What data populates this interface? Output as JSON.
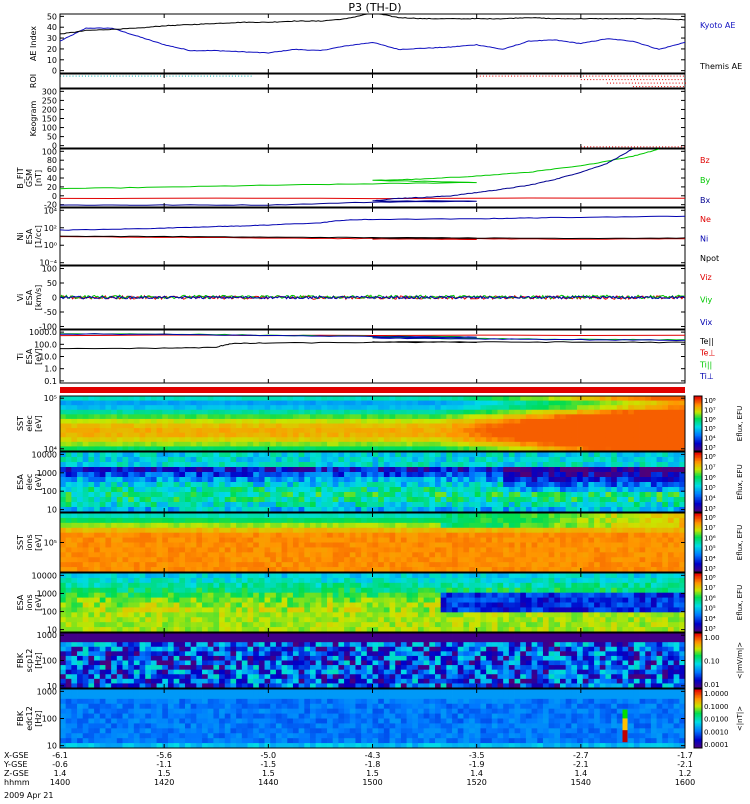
{
  "title": "P3 (TH-D)",
  "date_label": "2009 Apr 21",
  "colors": {
    "kyoto": "#1010c0",
    "themis": "#000000",
    "red": "#e00000",
    "green": "#00c800",
    "blue": "#0000b0",
    "black": "#000000"
  },
  "chart_data": [
    {
      "type": "line",
      "id": "ae",
      "ylabel": "AE Index",
      "ylim": [
        0,
        50
      ],
      "yticks": [
        "0",
        "10",
        "20",
        "30",
        "40",
        "50"
      ],
      "series": [
        {
          "name": "Kyoto AE",
          "color": "#1010c0",
          "x": [
            1400,
            1405,
            1410,
            1415,
            1420,
            1425,
            1430,
            1435,
            1440,
            1445,
            1450,
            1455,
            1500,
            1505,
            1510,
            1515,
            1520,
            1525,
            1530,
            1535,
            1540,
            1545,
            1550,
            1555,
            1600
          ],
          "y": [
            27,
            38,
            38,
            31,
            24,
            19,
            19,
            18,
            17,
            20,
            19,
            23,
            26,
            20,
            21,
            22,
            24,
            20,
            27,
            28,
            25,
            29,
            27,
            20,
            26
          ]
        },
        {
          "name": "Themis AE",
          "color": "#000000",
          "x": [
            1400,
            1405,
            1410,
            1415,
            1420,
            1425,
            1430,
            1435,
            1440,
            1445,
            1450,
            1455,
            1500,
            1505,
            1510,
            1515,
            1520,
            1525,
            1530,
            1535,
            1540,
            1545,
            1550,
            1555,
            1600
          ],
          "y": [
            33,
            36,
            37,
            38,
            40,
            41,
            42,
            43,
            43,
            44,
            44,
            46,
            51,
            47,
            46,
            46,
            46,
            46,
            47,
            46,
            46,
            46,
            46,
            46,
            45
          ]
        }
      ]
    },
    {
      "type": "scatter",
      "id": "roi",
      "ylabel": "ROI",
      "series": [
        {
          "color": "#00b0b0",
          "x_range": [
            1400,
            1437
          ],
          "level": 0.85
        },
        {
          "color": "#e00000",
          "x_range": [
            1520,
            1600
          ],
          "level": 0.85
        },
        {
          "color": "#e00000",
          "x_range": [
            1540,
            1600
          ],
          "level": 0.6
        },
        {
          "color": "#e00000",
          "x_range": [
            1545,
            1600
          ],
          "level": 0.35
        },
        {
          "color": "#e00000",
          "x_range": [
            1550,
            1600
          ],
          "level": 0.1
        }
      ]
    },
    {
      "type": "scatter",
      "id": "keogram",
      "ylabel": "Keogram",
      "ylim": [
        0,
        300
      ],
      "yticks": [
        "0",
        "50",
        "100",
        "150",
        "200",
        "250",
        "300"
      ],
      "series": [
        {
          "color": "#e00000",
          "x_range": [
            1540,
            1600
          ]
        }
      ]
    },
    {
      "type": "line",
      "id": "bfield",
      "ylabel": "B_FIT",
      "ylabel2": "GSM",
      "ylabel3": "[nT]",
      "ylim": [
        -20,
        100
      ],
      "yticks": [
        "-20",
        "0",
        "20",
        "40",
        "60",
        "80",
        "100"
      ],
      "series": [
        {
          "name": "Bz",
          "color": "#e00000",
          "x": [
            1400,
            1600
          ],
          "y": [
            -2,
            -2
          ]
        },
        {
          "name": "By",
          "color": "#00c800",
          "x": [
            1400,
            1420,
            1440,
            1460,
            1480,
            1500,
            1510,
            1520,
            1530,
            1540,
            1550,
            1555
          ],
          "y": [
            18,
            21,
            25,
            28,
            31,
            35,
            38,
            44,
            52,
            65,
            85,
            100
          ]
        },
        {
          "name": "Bx",
          "color": "#000090",
          "x": [
            1400,
            1420,
            1440,
            1460,
            1480,
            1500,
            1505,
            1510,
            1515,
            1520,
            1525,
            1530,
            1535,
            1540,
            1545,
            1550
          ],
          "y": [
            -16,
            -16,
            -16,
            -10,
            -8,
            -7,
            -2,
            0,
            3,
            10,
            17,
            25,
            37,
            52,
            70,
            100
          ]
        }
      ]
    },
    {
      "type": "line",
      "id": "density",
      "ylabel": "Ni",
      "ylabel2": "ESA",
      "ylabel3": "[1/cc]",
      "log": true,
      "ylim": [
        0.0001,
        10000
      ],
      "yticks": [
        "10⁻⁴",
        "10⁰",
        "10²",
        "10⁴"
      ],
      "series": [
        {
          "name": "Ne",
          "color": "#e00000",
          "x": [
            1400,
            1420,
            1440,
            1460,
            1480,
            1500,
            1520,
            1540,
            1560,
            1580,
            1600
          ],
          "y": [
            0.9,
            0.8,
            0.6,
            0.5,
            0.4,
            0.45,
            0.5,
            0.4,
            0.5,
            0.5,
            0.6
          ]
        },
        {
          "name": "Ni",
          "color": "#0000b0",
          "x": [
            1400,
            1410,
            1420,
            1430,
            1435,
            1440,
            1450,
            1455,
            1500,
            1520,
            1530,
            1540,
            1560,
            1580,
            1600
          ],
          "y": [
            8,
            10,
            15,
            25,
            30,
            40,
            80,
            200,
            250,
            300,
            400,
            500,
            700,
            800,
            900
          ]
        },
        {
          "name": "Npot",
          "color": "#000000",
          "x": [
            1400,
            1420,
            1440,
            1460,
            1480,
            1500,
            1520,
            1540,
            1560,
            1580,
            1600
          ],
          "y": [
            1.1,
            1.0,
            0.8,
            0.7,
            0.65,
            0.6,
            0.6,
            0.55,
            0.6,
            0.6,
            0.7
          ]
        }
      ]
    },
    {
      "type": "line",
      "id": "velocity",
      "ylabel": "Vi",
      "ylabel2": "ESA",
      "ylabel3": "[km/s]",
      "ylim": [
        -150,
        150
      ],
      "yticks": [
        "-100",
        "-50",
        "0",
        "50",
        "100"
      ],
      "series": [
        {
          "name": "Viz",
          "color": "#e00000",
          "mean": 0,
          "noise": 8
        },
        {
          "name": "Viy",
          "color": "#00c800",
          "mean": 3,
          "noise": 8
        },
        {
          "name": "Vix",
          "color": "#0000b0",
          "mean": 0,
          "noise": 6
        }
      ]
    },
    {
      "type": "line",
      "id": "temperature",
      "ylabel": "Ti",
      "ylabel2": "ESA",
      "ylabel3": "[eV]",
      "log": true,
      "ylim": [
        0.05,
        3000
      ],
      "yticks": [
        "0.1",
        "1.0",
        "10.0",
        "100.0",
        "1000.0"
      ],
      "series": [
        {
          "name": "Te||",
          "color": "#000000",
          "x": [
            1400,
            1420,
            1430,
            1433,
            1440,
            1460,
            1480,
            1500,
            1520,
            1540,
            1560,
            1580,
            1600
          ],
          "y": [
            60,
            70,
            80,
            180,
            200,
            230,
            240,
            250,
            250,
            240,
            230,
            230,
            220
          ]
        },
        {
          "name": "Te⊥",
          "color": "#e00000",
          "x": [
            1400,
            1600
          ],
          "y": [
            1000,
            1000
          ]
        },
        {
          "name": "Ti||",
          "color": "#00c800",
          "x": [
            1400,
            1420,
            1440,
            1460,
            1480,
            1500,
            1520,
            1540,
            1560,
            1580,
            1600
          ],
          "y": [
            1400,
            1300,
            1000,
            800,
            700,
            600,
            500,
            420,
            380,
            330,
            300
          ]
        },
        {
          "name": "Ti⊥",
          "color": "#0000b0",
          "x": [
            1400,
            1420,
            1440,
            1460,
            1480,
            1500,
            1520,
            1540,
            1560,
            1580,
            1600
          ],
          "y": [
            1300,
            1200,
            950,
            780,
            680,
            580,
            480,
            400,
            360,
            320,
            290
          ]
        }
      ]
    },
    {
      "type": "heatmap",
      "id": "sst-e",
      "ylabel": "SST",
      "ylabel2": "elec",
      "ylabel3": "[eV]",
      "yticks": [
        "10⁴",
        "10⁵"
      ],
      "cbar_label": "Eflux, EFU",
      "cbar_ticks": [
        "10³",
        "10⁴",
        "10⁵",
        "10⁶",
        "10⁷",
        "10⁸"
      ]
    },
    {
      "type": "heatmap",
      "id": "esa-e",
      "ylabel": "ESA",
      "ylabel2": "elec",
      "ylabel3": "[eV]",
      "yticks": [
        "10",
        "100",
        "1000",
        "10000"
      ],
      "cbar_label": "Eflux, EFU",
      "cbar_ticks": [
        "10³",
        "10⁴",
        "10⁵",
        "10⁶",
        "10⁷",
        "10⁸"
      ]
    },
    {
      "type": "heatmap",
      "id": "sst-i",
      "ylabel": "SST",
      "ylabel2": "ions",
      "ylabel3": "[eV]",
      "yticks": [
        "10⁵"
      ],
      "cbar_label": "Eflux, EFU",
      "cbar_ticks": [
        "10³",
        "10⁴",
        "10⁵",
        "10⁶",
        "10⁷",
        "10⁸"
      ]
    },
    {
      "type": "heatmap",
      "id": "esa-i",
      "ylabel": "ESA",
      "ylabel2": "ions",
      "ylabel3": "[eV]",
      "yticks": [
        "10",
        "100",
        "1000",
        "10000"
      ],
      "cbar_label": "Eflux, EFU",
      "cbar_ticks": [
        "10³",
        "10⁴",
        "10⁵",
        "10⁶",
        "10⁷",
        "10⁸"
      ]
    },
    {
      "type": "heatmap",
      "id": "fbk-b",
      "ylabel": "FBK",
      "ylabel2": "scp12",
      "ylabel3": "[Hz]",
      "yticks": [
        "10",
        "100",
        "1000"
      ],
      "cbar_label": "<|mV/m|>",
      "cbar_ticks": [
        "0.01",
        "0.10",
        "1.00"
      ]
    },
    {
      "type": "heatmap",
      "id": "fbk-e",
      "ylabel": "FBK",
      "ylabel2": "edc12",
      "ylabel3": "[Hz]",
      "yticks": [
        "10",
        "100",
        "1000"
      ],
      "cbar_label": "<|nT|>",
      "cbar_ticks": [
        "0.0001",
        "0.0010",
        "0.0100",
        "0.1000",
        "1.0000"
      ]
    }
  ],
  "xaxis": {
    "tick_times": [
      1400,
      1420,
      1440,
      1500,
      1520,
      1540,
      1600
    ],
    "row_labels": [
      "X-GSE",
      "Y-GSE",
      "Z-GSE",
      "hhmm"
    ],
    "rows": [
      [
        "-6.1",
        "-5.6",
        "-5.0",
        "-4.3",
        "-3.5",
        "-2.7",
        "-1.7"
      ],
      [
        "-0.6",
        "-1.1",
        "-1.5",
        "-1.8",
        "-1.9",
        "-2.1",
        "-2.1"
      ],
      [
        "1.4",
        "1.5",
        "1.5",
        "1.5",
        "1.4",
        "1.4",
        "1.2"
      ],
      [
        "1400",
        "1420",
        "1440",
        "1500",
        "1520",
        "1540",
        "1600"
      ]
    ]
  }
}
